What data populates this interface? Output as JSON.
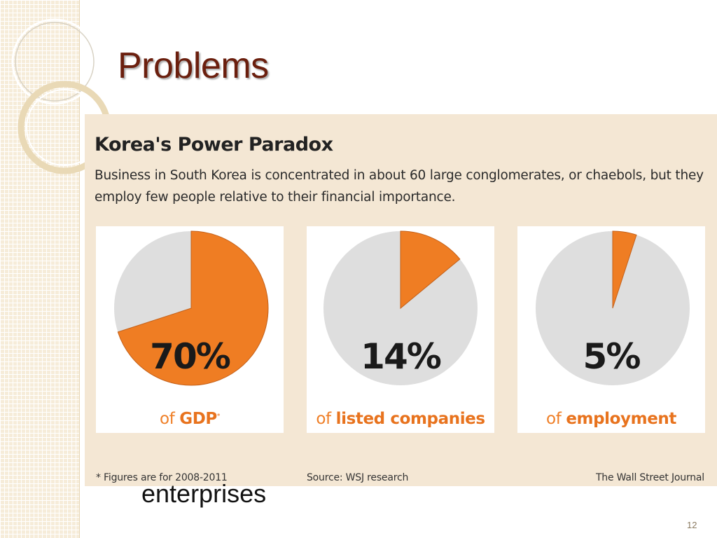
{
  "slide": {
    "title": "Problems",
    "body_text": "enterprises",
    "page_number": "12"
  },
  "colors": {
    "orange": "#ef7d23",
    "gray": "#dedede",
    "background": "#f4e7d4"
  },
  "chart_data": {
    "type": "pie",
    "title": "Korea's Power Paradox",
    "subtitle": "Business in South Korea is concentrated in about 60 large conglomerates, or chaebols, but they employ few people relative to their financial importance.",
    "charts": [
      {
        "value": 70,
        "label": "70%",
        "of": "of",
        "what": "GDP",
        "mark": "*"
      },
      {
        "value": 14,
        "label": "14%",
        "of": "of",
        "what": "listed companies",
        "mark": ""
      },
      {
        "value": 5,
        "label": "5%",
        "of": "of",
        "what": "employment",
        "mark": ""
      }
    ],
    "footnote": "* Figures are for 2008-2011",
    "source": "Source: WSJ research",
    "credit": "The Wall Street Journal"
  }
}
